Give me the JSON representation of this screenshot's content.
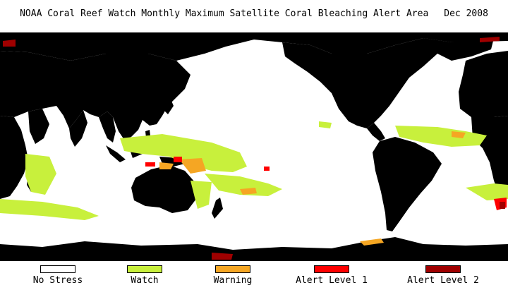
{
  "title": {
    "text": "NOAA Coral Reef Watch Monthly Maximum Satellite Coral Bleaching Alert Area",
    "date": "Dec 2008"
  },
  "map": {
    "projection": "global equirectangular, centered on Pacific",
    "land_color": "#000000",
    "ocean_no_stress_color": "#ffffff"
  },
  "legend": {
    "items": [
      {
        "label": "No Stress",
        "color": "#ffffff"
      },
      {
        "label": "Watch",
        "color": "#c8f03c"
      },
      {
        "label": "Warning",
        "color": "#f5a623"
      },
      {
        "label": "Alert Level 1",
        "color": "#ff0000"
      },
      {
        "label": "Alert Level 2",
        "color": "#a00000"
      }
    ]
  }
}
